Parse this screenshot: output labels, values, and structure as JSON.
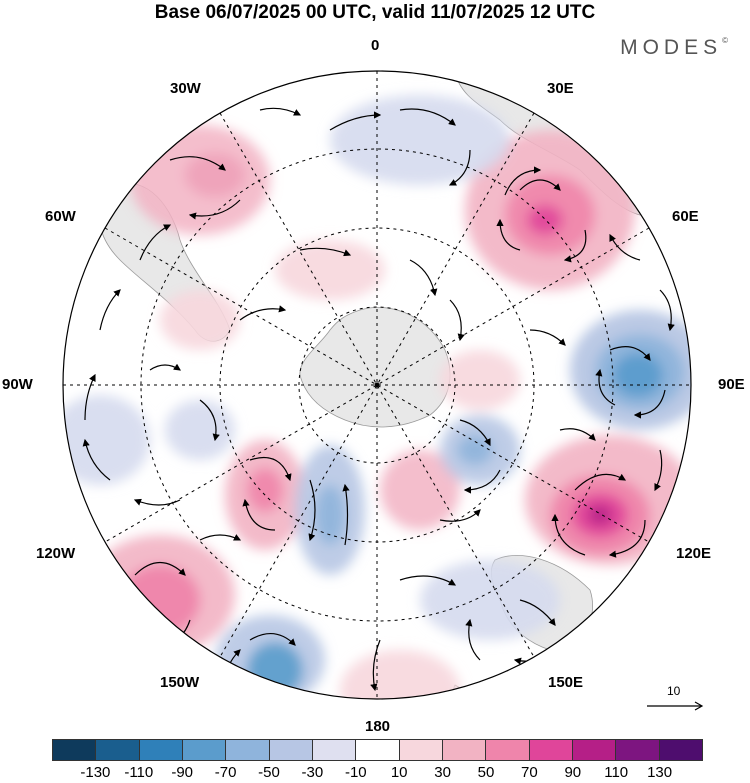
{
  "title": "Base 06/07/2025 00 UTC, valid 11/07/2025 12 UTC",
  "brand": "MODES",
  "brand_mark": "©",
  "longitude_labels": {
    "lon_0": "0",
    "lon_30e": "30E",
    "lon_60e": "60E",
    "lon_90e": "90E",
    "lon_120e": "120E",
    "lon_150e": "150E",
    "lon_180": "180",
    "lon_150w": "150W",
    "lon_120w": "120W",
    "lon_90w": "90W",
    "lon_60w": "60W",
    "lon_30w": "30W"
  },
  "reference_vector": "10",
  "colorbar": {
    "colors": [
      "#0e3a5c",
      "#1a5e8e",
      "#2f80b9",
      "#5b9ccc",
      "#8fb4dc",
      "#b7c6e4",
      "#dfe0f0",
      "#ffffff",
      "#f7d7dd",
      "#f2b3c3",
      "#ef85ab",
      "#e0459a",
      "#b51f87",
      "#7d1580",
      "#4e0d6e"
    ],
    "labels": [
      "-130",
      "-110",
      "-90",
      "-70",
      "-50",
      "-30",
      "-10",
      "10",
      "30",
      "50",
      "70",
      "90",
      "110",
      "130"
    ]
  },
  "features": {
    "antarctica": "antarctica-landmass",
    "landmasses": [
      "south-america",
      "africa",
      "australia",
      "new-zealand"
    ]
  }
}
